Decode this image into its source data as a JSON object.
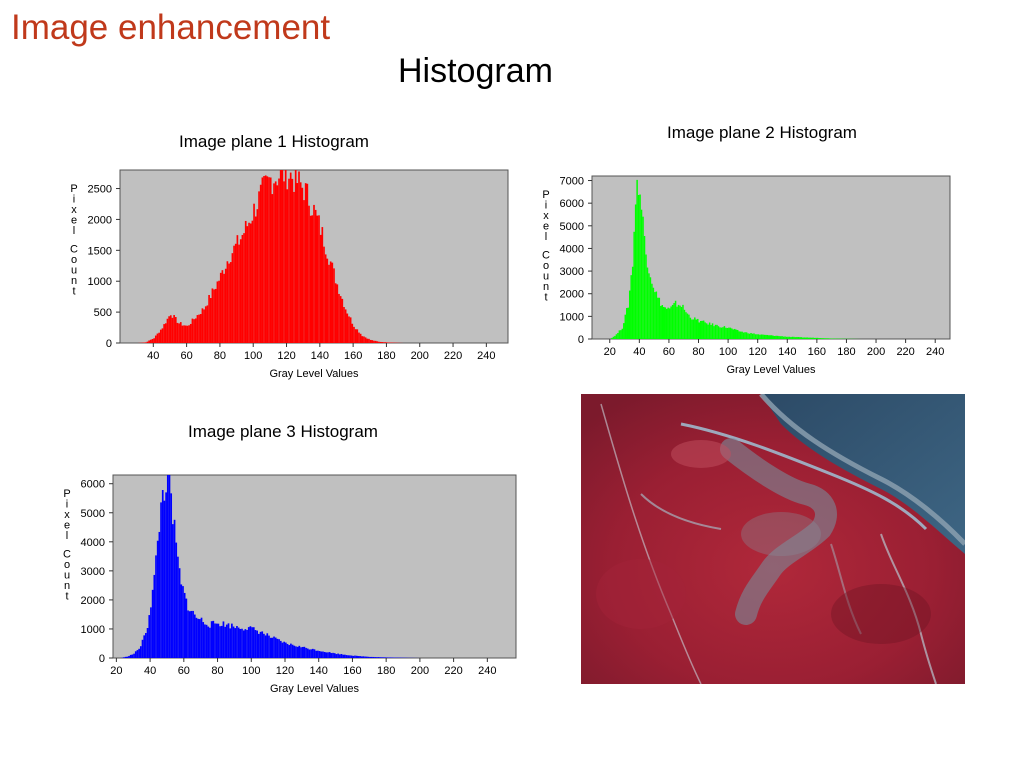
{
  "slide": {
    "title": "Image enhancement",
    "subtitle": "Histogram"
  },
  "chart_data": [
    {
      "type": "bar",
      "title": "Image plane 1 Histogram",
      "xlabel": "Gray Level Values",
      "ylabel": "Pixel Count",
      "color": "#ff0000",
      "plot_bg": "#c0c0c0",
      "xlim": [
        20,
        253
      ],
      "ylim": [
        0,
        2800
      ],
      "xticks": [
        40,
        60,
        80,
        100,
        120,
        140,
        160,
        180,
        200,
        220,
        240
      ],
      "yticks": [
        0,
        500,
        1000,
        1500,
        2000,
        2500
      ],
      "x": [
        30,
        35,
        40,
        45,
        50,
        55,
        60,
        65,
        70,
        75,
        80,
        85,
        90,
        95,
        100,
        105,
        110,
        115,
        120,
        125,
        130,
        135,
        140,
        145,
        150,
        155,
        160,
        165,
        170,
        175,
        180,
        185,
        190
      ],
      "values": [
        0,
        10,
        80,
        250,
        480,
        320,
        270,
        420,
        560,
        820,
        1080,
        1400,
        1600,
        1850,
        2150,
        2450,
        2650,
        2720,
        2760,
        2640,
        2500,
        2220,
        1850,
        1400,
        950,
        560,
        280,
        120,
        50,
        20,
        10,
        5,
        0
      ]
    },
    {
      "type": "bar",
      "title": "Image plane 2 Histogram",
      "xlabel": "Gray Level Values",
      "ylabel": "Pixel Count",
      "color": "#00ff00",
      "plot_bg": "#c0c0c0",
      "xlim": [
        8,
        250
      ],
      "ylim": [
        0,
        7200
      ],
      "xticks": [
        20,
        40,
        60,
        80,
        100,
        120,
        140,
        160,
        180,
        200,
        220,
        240
      ],
      "yticks": [
        0,
        1000,
        2000,
        3000,
        4000,
        5000,
        6000,
        7000
      ],
      "x": [
        20,
        24,
        28,
        32,
        35,
        37,
        39,
        41,
        44,
        48,
        52,
        56,
        60,
        64,
        68,
        72,
        76,
        80,
        85,
        90,
        95,
        100,
        105,
        110,
        120,
        130,
        140,
        150,
        160,
        170,
        180,
        190
      ],
      "values": [
        0,
        200,
        500,
        1500,
        3400,
        6200,
        7000,
        5800,
        3800,
        2600,
        1800,
        1400,
        1300,
        1550,
        1500,
        1100,
        900,
        800,
        700,
        620,
        550,
        500,
        380,
        300,
        200,
        150,
        100,
        70,
        50,
        20,
        10,
        0
      ]
    },
    {
      "type": "bar",
      "title": "Image plane 3 Histogram",
      "xlabel": "Gray Level Values",
      "ylabel": "Pixel Count",
      "color": "#0000ff",
      "plot_bg": "#c0c0c0",
      "xlim": [
        18,
        257
      ],
      "ylim": [
        0,
        6300
      ],
      "xticks": [
        20,
        40,
        60,
        80,
        100,
        120,
        140,
        160,
        180,
        200,
        220,
        240
      ],
      "yticks": [
        0,
        1000,
        2000,
        3000,
        4000,
        5000,
        6000
      ],
      "x": [
        22,
        26,
        30,
        34,
        38,
        42,
        45,
        47,
        49,
        51,
        53,
        55,
        58,
        62,
        66,
        70,
        75,
        80,
        85,
        90,
        95,
        100,
        105,
        110,
        115,
        120,
        130,
        140,
        150,
        160,
        170,
        180,
        190,
        200
      ],
      "values": [
        0,
        50,
        150,
        400,
        1100,
        2700,
        4600,
        5700,
        6050,
        5900,
        4900,
        3800,
        2500,
        1800,
        1450,
        1300,
        1150,
        1200,
        1150,
        1080,
        1050,
        1000,
        900,
        750,
        620,
        500,
        370,
        250,
        150,
        80,
        40,
        20,
        10,
        0
      ]
    }
  ]
}
